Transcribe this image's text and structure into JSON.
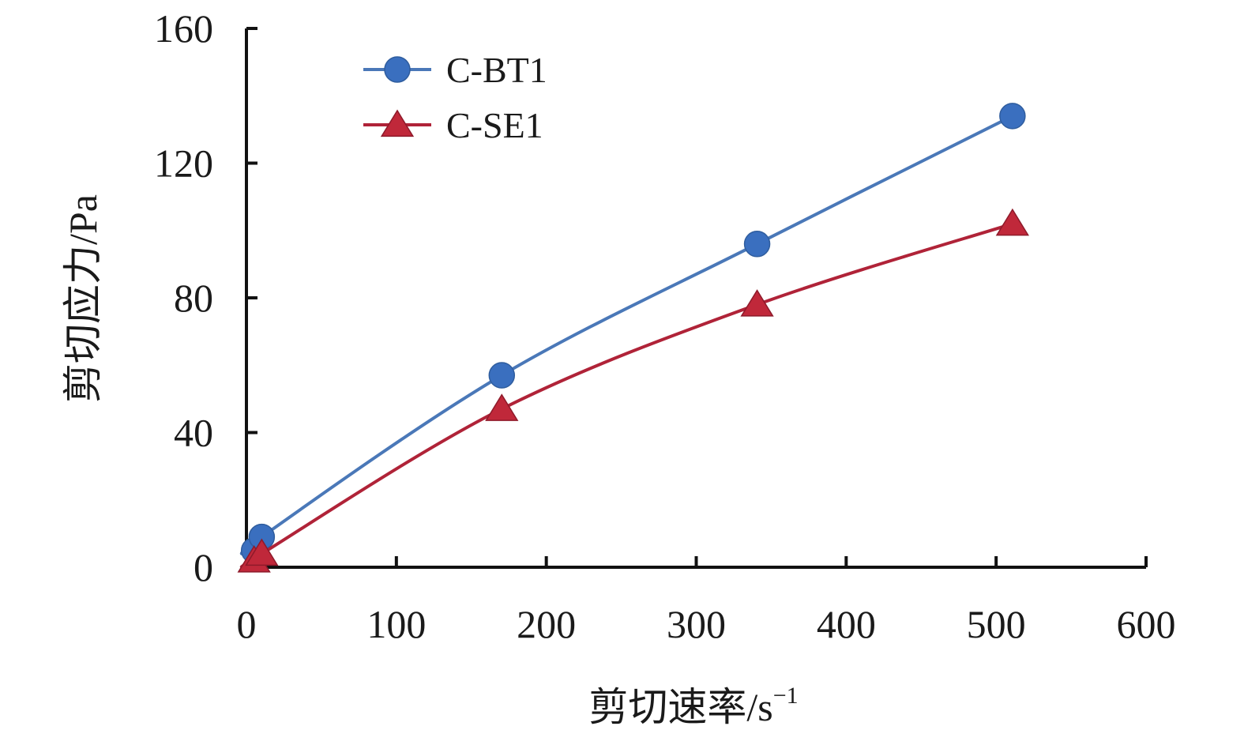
{
  "chart_data": {
    "type": "line",
    "title": "",
    "xlabel": "剪切速率/s",
    "xlabel_superscript": "−1",
    "ylabel": "剪切应力/Pa",
    "xlim": [
      0,
      600
    ],
    "ylim": [
      0,
      160
    ],
    "xticks": [
      0,
      100,
      200,
      300,
      400,
      500,
      600
    ],
    "yticks": [
      0,
      40,
      80,
      120,
      160
    ],
    "grid": false,
    "legend_position": "top-left",
    "series": [
      {
        "name": "C-BT1",
        "color": "#3a6fbf",
        "line_color": "#4a78b8",
        "marker": "circle",
        "x": [
          5.1,
          10.2,
          170.3,
          340.6,
          510.9
        ],
        "y": [
          5,
          9,
          57,
          96,
          134
        ]
      },
      {
        "name": "C-SE1",
        "color": "#c0283a",
        "line_color": "#b02338",
        "marker": "triangle",
        "x": [
          5.1,
          10.2,
          170.3,
          340.6,
          510.9
        ],
        "y": [
          2,
          4,
          47,
          78,
          102
        ]
      }
    ]
  }
}
